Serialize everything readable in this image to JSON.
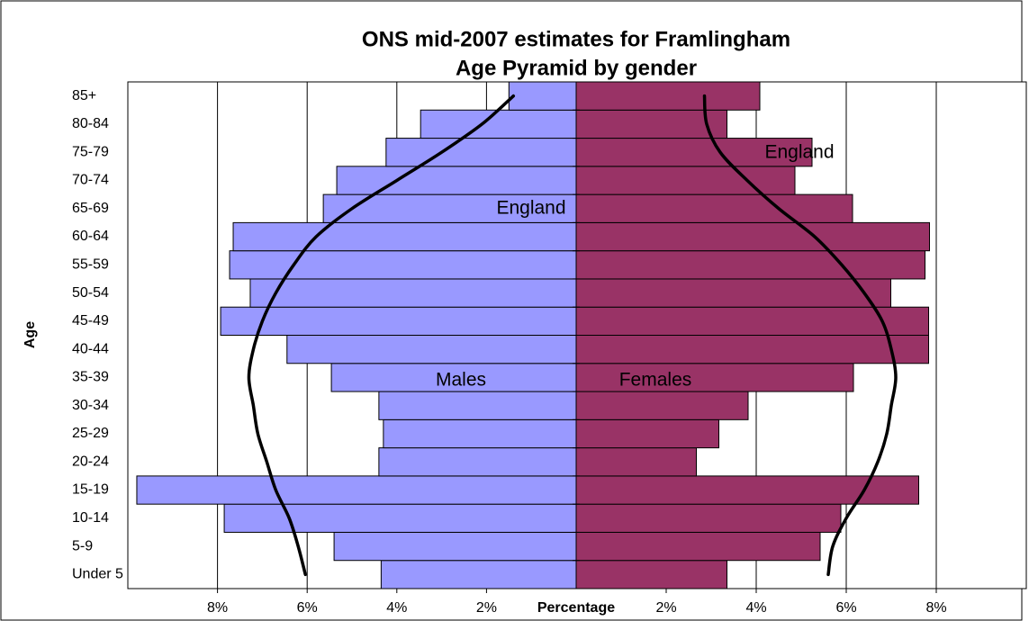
{
  "chart_data": {
    "type": "pyramid",
    "title": "ONS mid-2007 estimates for Framlingham",
    "subtitle": "Age Pyramid by gender",
    "y_label": "Age",
    "x_label": "Percentage",
    "categories": [
      "Under 5",
      "5-9",
      "10-14",
      "15-19",
      "20-24",
      "25-29",
      "30-34",
      "35-39",
      "40-44",
      "45-49",
      "50-54",
      "55-59",
      "60-64",
      "65-69",
      "70-74",
      "75-79",
      "80-84",
      "85+"
    ],
    "xlim": [
      0,
      10
    ],
    "xticks_left": [
      {
        "value": 2,
        "label": "2%"
      },
      {
        "value": 4,
        "label": "4%"
      },
      {
        "value": 6,
        "label": "6%"
      },
      {
        "value": 8,
        "label": "8%"
      }
    ],
    "xticks_right": [
      {
        "value": 2,
        "label": "2%"
      },
      {
        "value": 4,
        "label": "4%"
      },
      {
        "value": 6,
        "label": "6%"
      },
      {
        "value": 8,
        "label": "8%"
      }
    ],
    "grid": true,
    "series": [
      {
        "name": "Males",
        "kind": "bar",
        "side": "left",
        "color": "#9999ff",
        "values": [
          4.35,
          5.4,
          7.85,
          9.8,
          4.4,
          4.3,
          4.4,
          5.46,
          6.45,
          7.93,
          7.27,
          7.73,
          7.65,
          5.64,
          5.34,
          4.24,
          3.47,
          1.5
        ]
      },
      {
        "name": "Females",
        "kind": "bar",
        "side": "right",
        "color": "#993366",
        "values": [
          3.35,
          5.42,
          5.88,
          7.61,
          2.67,
          3.17,
          3.82,
          6.16,
          7.83,
          7.83,
          6.99,
          7.75,
          7.85,
          6.14,
          4.86,
          5.24,
          3.35,
          4.08
        ]
      },
      {
        "name": "England",
        "kind": "line",
        "side": "left",
        "color": "#000000",
        "values": [
          6.04,
          6.2,
          6.4,
          6.7,
          6.9,
          7.1,
          7.2,
          7.3,
          7.2,
          7.0,
          6.7,
          6.3,
          5.8,
          5.0,
          4.0,
          3.0,
          2.1,
          1.4
        ]
      },
      {
        "name": "England",
        "kind": "line",
        "side": "right",
        "color": "#000000",
        "values": [
          5.6,
          5.7,
          6.0,
          6.4,
          6.7,
          6.9,
          7.0,
          7.1,
          7.0,
          6.8,
          6.4,
          5.9,
          5.3,
          4.5,
          3.8,
          3.2,
          2.9,
          2.85
        ]
      }
    ]
  }
}
